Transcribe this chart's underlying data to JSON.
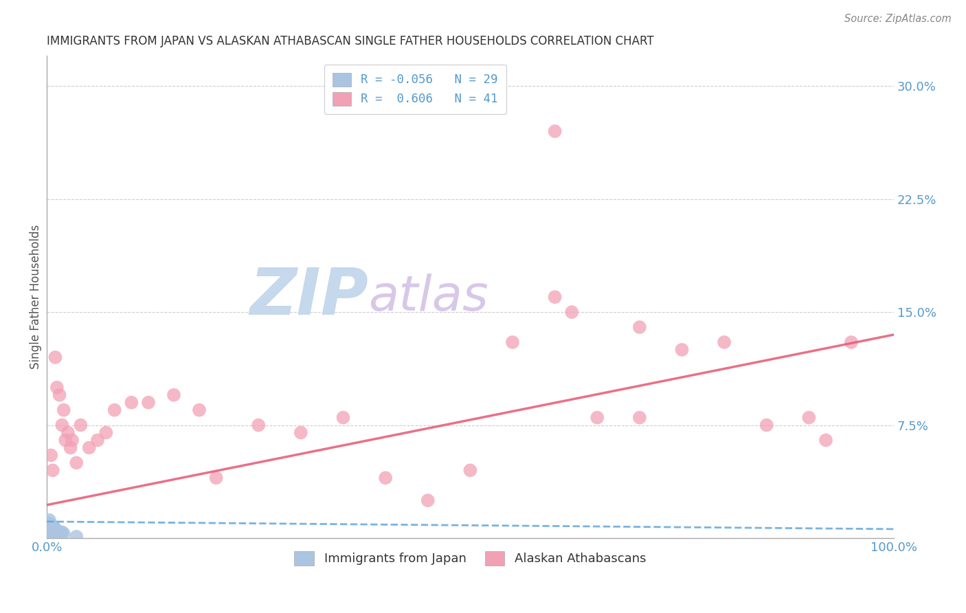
{
  "title": "IMMIGRANTS FROM JAPAN VS ALASKAN ATHABASCAN SINGLE FATHER HOUSEHOLDS CORRELATION CHART",
  "source": "Source: ZipAtlas.com",
  "ylabel": "Single Father Households",
  "xmin": 0.0,
  "xmax": 1.0,
  "ymin": 0.0,
  "ymax": 0.32,
  "yticks": [
    0.0,
    0.075,
    0.15,
    0.225,
    0.3
  ],
  "ytick_labels": [
    "",
    "7.5%",
    "15.0%",
    "22.5%",
    "30.0%"
  ],
  "xtick_labels": [
    "0.0%",
    "100.0%"
  ],
  "legend_r1": "R = -0.056",
  "legend_n1": "N = 29",
  "legend_r2": "R =  0.606",
  "legend_n2": "N = 41",
  "legend_label1": "Immigrants from Japan",
  "legend_label2": "Alaskan Athabascans",
  "blue_color": "#aac4e2",
  "pink_color": "#f2a0b5",
  "blue_line_color": "#6aabdd",
  "pink_line_color": "#e8607a",
  "title_color": "#333333",
  "axis_color": "#5599cc",
  "watermark_zip_color": "#c5d8ec",
  "watermark_atlas_color": "#d8c8e8",
  "blue_scatter_x": [
    0.001,
    0.002,
    0.002,
    0.003,
    0.003,
    0.003,
    0.004,
    0.004,
    0.005,
    0.005,
    0.005,
    0.006,
    0.006,
    0.007,
    0.007,
    0.008,
    0.008,
    0.009,
    0.009,
    0.01,
    0.01,
    0.011,
    0.012,
    0.013,
    0.015,
    0.016,
    0.018,
    0.02,
    0.035
  ],
  "blue_scatter_y": [
    0.005,
    0.008,
    0.01,
    0.005,
    0.008,
    0.012,
    0.004,
    0.007,
    0.003,
    0.006,
    0.009,
    0.004,
    0.007,
    0.005,
    0.008,
    0.003,
    0.006,
    0.004,
    0.007,
    0.003,
    0.006,
    0.004,
    0.005,
    0.003,
    0.004,
    0.003,
    0.004,
    0.003,
    0.001
  ],
  "pink_scatter_x": [
    0.005,
    0.007,
    0.01,
    0.012,
    0.015,
    0.018,
    0.02,
    0.022,
    0.025,
    0.028,
    0.03,
    0.035,
    0.04,
    0.05,
    0.06,
    0.07,
    0.08,
    0.1,
    0.12,
    0.15,
    0.18,
    0.2,
    0.25,
    0.3,
    0.35,
    0.4,
    0.45,
    0.5,
    0.55,
    0.6,
    0.62,
    0.65,
    0.7,
    0.75,
    0.8,
    0.85,
    0.9,
    0.92,
    0.95,
    0.6,
    0.7
  ],
  "pink_scatter_y": [
    0.055,
    0.045,
    0.12,
    0.1,
    0.095,
    0.075,
    0.085,
    0.065,
    0.07,
    0.06,
    0.065,
    0.05,
    0.075,
    0.06,
    0.065,
    0.07,
    0.085,
    0.09,
    0.09,
    0.095,
    0.085,
    0.04,
    0.075,
    0.07,
    0.08,
    0.04,
    0.025,
    0.045,
    0.13,
    0.16,
    0.15,
    0.08,
    0.08,
    0.125,
    0.13,
    0.075,
    0.08,
    0.065,
    0.13,
    0.27,
    0.14
  ],
  "blue_line_y_start": 0.011,
  "blue_line_y_end": 0.006,
  "pink_line_y_start": 0.022,
  "pink_line_y_end": 0.135
}
